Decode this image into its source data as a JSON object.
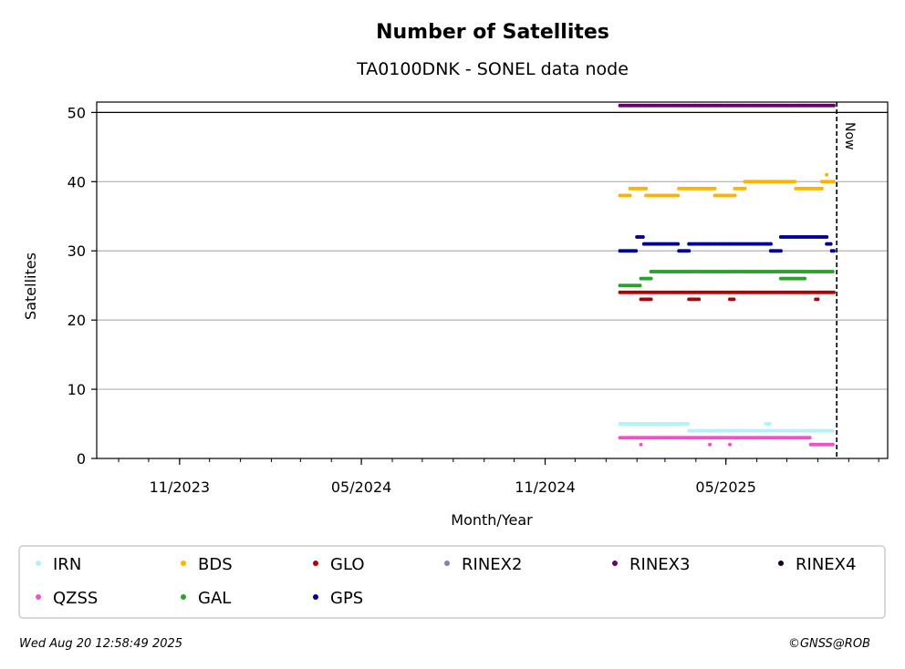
{
  "chart_data": {
    "type": "scatter",
    "title": "Number of Satellites",
    "subtitle": "TA0100DNK - SONEL data node",
    "xlabel": "Month/Year",
    "ylabel": "Satellites",
    "ylim": [
      0,
      51.5
    ],
    "xlim": [
      "2023-08-10",
      "2025-10-10"
    ],
    "yticks": [
      0,
      10,
      20,
      30,
      40,
      50
    ],
    "xticks": [
      {
        "date": "2023-11-01",
        "label": "11/2023"
      },
      {
        "date": "2024-05-01",
        "label": "05/2024"
      },
      {
        "date": "2024-11-01",
        "label": "11/2024"
      },
      {
        "date": "2025-05-01",
        "label": "05/2025"
      }
    ],
    "minor_ticks": "monthly",
    "grid": "horizontal",
    "now_marker": {
      "date": "2025-08-20",
      "label": "Now"
    },
    "hline": 50,
    "legend_position": "below",
    "series": [
      {
        "name": "IRN",
        "color": "#b3f2f7",
        "segments": [
          {
            "start": "2025-01-15",
            "end": "2025-03-25",
            "value": 5
          },
          {
            "start": "2025-03-25",
            "end": "2025-08-17",
            "value": 4
          },
          {
            "start": "2025-06-10",
            "end": "2025-06-15",
            "value": 5
          }
        ]
      },
      {
        "name": "QZSS",
        "color": "#f24fc9",
        "segments": [
          {
            "start": "2025-01-15",
            "end": "2025-07-25",
            "value": 3
          },
          {
            "start": "2025-07-25",
            "end": "2025-08-17",
            "value": 2
          },
          {
            "start": "2025-02-05",
            "end": "2025-02-05",
            "value": 2
          },
          {
            "start": "2025-04-15",
            "end": "2025-04-15",
            "value": 2
          },
          {
            "start": "2025-05-05",
            "end": "2025-05-05",
            "value": 2
          }
        ]
      },
      {
        "name": "BDS",
        "color": "#ffb300",
        "segments": [
          {
            "start": "2025-01-15",
            "end": "2025-01-25",
            "value": 38
          },
          {
            "start": "2025-01-25",
            "end": "2025-02-10",
            "value": 39
          },
          {
            "start": "2025-02-10",
            "end": "2025-03-15",
            "value": 38
          },
          {
            "start": "2025-03-15",
            "end": "2025-04-20",
            "value": 39
          },
          {
            "start": "2025-04-20",
            "end": "2025-05-10",
            "value": 38
          },
          {
            "start": "2025-05-10",
            "end": "2025-05-20",
            "value": 39
          },
          {
            "start": "2025-05-20",
            "end": "2025-06-15",
            "value": 40
          },
          {
            "start": "2025-06-15",
            "end": "2025-07-10",
            "value": 40
          },
          {
            "start": "2025-07-10",
            "end": "2025-08-05",
            "value": 39
          },
          {
            "start": "2025-08-05",
            "end": "2025-08-17",
            "value": 40
          },
          {
            "start": "2025-08-10",
            "end": "2025-08-10",
            "value": 41
          }
        ]
      },
      {
        "name": "GAL",
        "color": "#2ca02c",
        "segments": [
          {
            "start": "2025-01-15",
            "end": "2025-02-05",
            "value": 25
          },
          {
            "start": "2025-02-05",
            "end": "2025-02-15",
            "value": 26
          },
          {
            "start": "2025-02-15",
            "end": "2025-08-17",
            "value": 27
          },
          {
            "start": "2025-06-25",
            "end": "2025-07-20",
            "value": 26
          }
        ]
      },
      {
        "name": "GLO",
        "color": "#b30000",
        "segments": [
          {
            "start": "2025-01-15",
            "end": "2025-08-17",
            "value": 24
          },
          {
            "start": "2025-02-05",
            "end": "2025-02-15",
            "value": 23
          },
          {
            "start": "2025-03-25",
            "end": "2025-04-05",
            "value": 23
          },
          {
            "start": "2025-05-05",
            "end": "2025-05-10",
            "value": 23
          },
          {
            "start": "2025-07-30",
            "end": "2025-08-02",
            "value": 23
          }
        ]
      },
      {
        "name": "GPS",
        "color": "#000099",
        "segments": [
          {
            "start": "2025-01-15",
            "end": "2025-02-01",
            "value": 30
          },
          {
            "start": "2025-02-01",
            "end": "2025-02-08",
            "value": 32
          },
          {
            "start": "2025-02-08",
            "end": "2025-03-15",
            "value": 31
          },
          {
            "start": "2025-03-15",
            "end": "2025-03-25",
            "value": 30
          },
          {
            "start": "2025-03-25",
            "end": "2025-06-15",
            "value": 31
          },
          {
            "start": "2025-06-15",
            "end": "2025-06-25",
            "value": 30
          },
          {
            "start": "2025-06-25",
            "end": "2025-08-10",
            "value": 32
          },
          {
            "start": "2025-08-10",
            "end": "2025-08-15",
            "value": 31
          },
          {
            "start": "2025-08-15",
            "end": "2025-08-17",
            "value": 30
          }
        ]
      },
      {
        "name": "RINEX2",
        "color": "#8080b3",
        "segments": []
      },
      {
        "name": "RINEX3",
        "color": "#66006b",
        "segments": [
          {
            "start": "2025-01-15",
            "end": "2025-08-17",
            "value": 51
          }
        ]
      },
      {
        "name": "RINEX4",
        "color": "#1a0020",
        "segments": []
      }
    ],
    "legend_order": [
      "IRN",
      "BDS",
      "GLO",
      "RINEX2",
      "RINEX3",
      "RINEX4",
      "QZSS",
      "GAL",
      "GPS"
    ]
  },
  "footer": {
    "timestamp": "Wed Aug 20 12:58:49 2025",
    "credit": "©GNSS@ROB"
  }
}
